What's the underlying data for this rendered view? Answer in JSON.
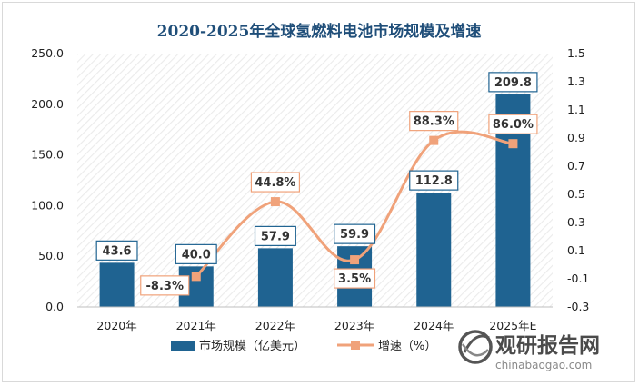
{
  "chart_data": {
    "type": "bar",
    "title": "2020-2025年全球氢燃料电池市场规模及增速",
    "categories": [
      "2020年",
      "2021年",
      "2022年",
      "2023年",
      "2024年",
      "2025年E"
    ],
    "series": [
      {
        "name": "市场规模（亿美元）",
        "type": "bar",
        "axis": "left",
        "values": [
          43.6,
          40.0,
          57.9,
          59.9,
          112.8,
          209.8
        ],
        "labels": [
          "43.6",
          "40.0",
          "57.9",
          "59.9",
          "112.8",
          "209.8"
        ],
        "color": "#1f6391"
      },
      {
        "name": "增速（%）",
        "type": "line",
        "axis": "right",
        "values": [
          null,
          -0.083,
          0.448,
          0.035,
          0.883,
          0.86
        ],
        "labels": [
          "",
          "-8.3%",
          "44.8%",
          "3.5%",
          "88.3%",
          "86.0%"
        ],
        "color": "#f0a27a"
      }
    ],
    "y_left": {
      "min": 0,
      "max": 250,
      "step": 50,
      "ticks": [
        "0.0",
        "50.0",
        "100.0",
        "150.0",
        "200.0",
        "250.0"
      ]
    },
    "y_right": {
      "min": -0.3,
      "max": 1.5,
      "step": 0.2,
      "ticks": [
        "-0.3",
        "-0.1",
        "0.1",
        "0.3",
        "0.5",
        "0.7",
        "0.9",
        "1.1",
        "1.3",
        "1.5"
      ]
    },
    "legend_position": "bottom"
  },
  "watermark": {
    "cn": "观研报告网",
    "en": "chinabaogao.com"
  },
  "colors": {
    "bar": "#1f6391",
    "line": "#f0a27a",
    "title": "#1f4e79",
    "label_border": "#1f6391",
    "line_label_border": "#f0a27a"
  }
}
